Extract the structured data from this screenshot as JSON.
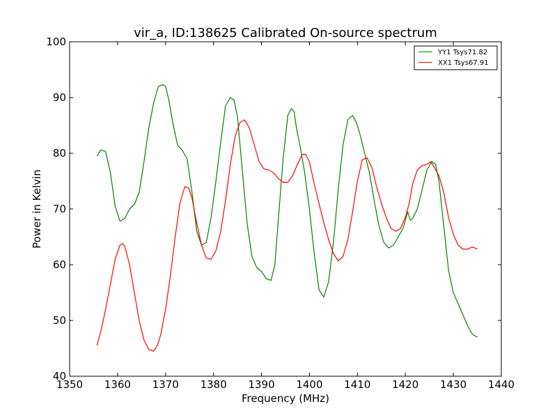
{
  "chart_data": {
    "type": "line",
    "title": "vir_a, ID:138625 Calibrated On-source spectrum",
    "xlabel": "Frequency (MHz)",
    "ylabel": "Power in Kelvin",
    "xlim": [
      1350,
      1440
    ],
    "ylim": [
      40,
      100
    ],
    "xticks": [
      "1350",
      "1360",
      "1370",
      "1380",
      "1390",
      "1400",
      "1410",
      "1420",
      "1430",
      "1440"
    ],
    "yticks": [
      "40",
      "50",
      "60",
      "70",
      "80",
      "90",
      "100"
    ],
    "grid": false,
    "legend": "top-right",
    "series": [
      {
        "name": "YY1 Tsys71.82",
        "color": "#008000",
        "x": [
          1355.7,
          1356.5,
          1357.5,
          1358.5,
          1359.5,
          1360.5,
          1361.5,
          1362.5,
          1363.5,
          1364.5,
          1365.5,
          1366.5,
          1367.5,
          1368.5,
          1369.5,
          1370.0,
          1370.7,
          1371.5,
          1372.5,
          1373.5,
          1374.5,
          1375.5,
          1376.5,
          1377.5,
          1378.5,
          1379.5,
          1380.5,
          1381.5,
          1382.5,
          1383.5,
          1384.3,
          1385.0,
          1386.0,
          1387.0,
          1388.0,
          1389.0,
          1390.0,
          1391.0,
          1392.0,
          1392.8,
          1393.5,
          1394.5,
          1395.5,
          1396.2,
          1396.8,
          1397.3,
          1398.0,
          1399.0,
          1400.0,
          1401.0,
          1402.0,
          1403.0,
          1404.0,
          1405.0,
          1406.0,
          1407.0,
          1408.0,
          1409.0,
          1409.8,
          1410.5,
          1411.5,
          1412.5,
          1413.5,
          1414.5,
          1415.5,
          1416.5,
          1417.5,
          1418.5,
          1419.5,
          1420.5,
          1421.0,
          1421.5,
          1422.5,
          1423.5,
          1424.5,
          1425.5,
          1426.3,
          1427.0,
          1428.0,
          1429.0,
          1430.0,
          1431.0,
          1432.0,
          1433.0,
          1434.0,
          1435.0
        ],
        "values": [
          79.5,
          80.6,
          80.3,
          76.5,
          70.5,
          67.8,
          68.3,
          70.0,
          70.8,
          73.0,
          78.5,
          84.5,
          89.0,
          92.0,
          92.3,
          92.0,
          89.5,
          85.5,
          81.5,
          80.5,
          79.0,
          73.0,
          66.0,
          63.5,
          64.0,
          68.5,
          75.0,
          82.0,
          88.5,
          90.0,
          89.5,
          86.5,
          77.0,
          67.5,
          61.5,
          59.5,
          58.8,
          57.5,
          57.2,
          60.0,
          68.0,
          79.0,
          86.8,
          88.0,
          87.5,
          84.5,
          81.5,
          76.5,
          70.0,
          62.0,
          55.5,
          54.2,
          57.0,
          64.0,
          73.5,
          81.5,
          86.0,
          86.8,
          85.5,
          83.5,
          80.0,
          76.5,
          71.5,
          67.0,
          64.0,
          63.0,
          63.5,
          65.0,
          66.5,
          69.5,
          68.0,
          68.3,
          70.0,
          73.5,
          77.0,
          78.5,
          78.0,
          75.0,
          67.0,
          59.0,
          55.0,
          53.0,
          51.0,
          49.0,
          47.5,
          47.0
        ]
      },
      {
        "name": "XX1 Tsys67.91",
        "color": "#ff0000",
        "x": [
          1355.7,
          1356.5,
          1357.5,
          1358.5,
          1359.5,
          1360.5,
          1361.0,
          1361.5,
          1362.5,
          1363.5,
          1364.5,
          1365.5,
          1366.5,
          1367.5,
          1368.3,
          1369.0,
          1370.0,
          1371.0,
          1372.0,
          1373.0,
          1374.0,
          1374.8,
          1375.5,
          1376.5,
          1377.5,
          1378.5,
          1379.5,
          1380.5,
          1381.5,
          1382.5,
          1383.5,
          1384.5,
          1385.5,
          1386.5,
          1387.5,
          1388.5,
          1389.5,
          1390.5,
          1391.5,
          1392.5,
          1393.5,
          1394.5,
          1395.5,
          1396.5,
          1397.5,
          1398.5,
          1399.2,
          1400.0,
          1401.0,
          1402.0,
          1403.0,
          1404.0,
          1405.0,
          1406.0,
          1407.0,
          1408.0,
          1409.0,
          1410.0,
          1411.0,
          1412.0,
          1413.0,
          1414.0,
          1415.0,
          1416.0,
          1417.0,
          1418.0,
          1419.0,
          1420.0,
          1420.8,
          1421.5,
          1422.5,
          1423.5,
          1424.5,
          1425.3,
          1426.0,
          1427.0,
          1428.0,
          1429.0,
          1430.0,
          1431.0,
          1432.0,
          1433.0,
          1434.0,
          1435.0
        ],
        "values": [
          45.5,
          48.0,
          52.0,
          56.5,
          61.0,
          63.5,
          63.8,
          63.3,
          60.0,
          55.0,
          50.0,
          46.5,
          44.8,
          44.5,
          45.5,
          47.5,
          52.0,
          58.0,
          65.0,
          71.0,
          74.0,
          73.8,
          72.0,
          67.5,
          63.5,
          61.2,
          61.0,
          62.5,
          66.0,
          71.5,
          78.0,
          83.0,
          85.5,
          86.0,
          84.5,
          81.5,
          78.5,
          77.2,
          77.0,
          76.5,
          75.5,
          74.8,
          74.8,
          76.0,
          78.0,
          79.8,
          79.8,
          78.5,
          74.5,
          71.0,
          67.5,
          64.5,
          62.0,
          60.7,
          61.5,
          64.5,
          69.5,
          75.0,
          78.8,
          79.2,
          77.5,
          74.0,
          71.0,
          68.5,
          66.5,
          66.0,
          66.5,
          68.5,
          71.0,
          74.5,
          77.0,
          77.8,
          78.0,
          78.5,
          77.5,
          76.0,
          73.0,
          68.5,
          65.5,
          63.5,
          62.8,
          62.8,
          63.2,
          62.8
        ]
      }
    ]
  }
}
